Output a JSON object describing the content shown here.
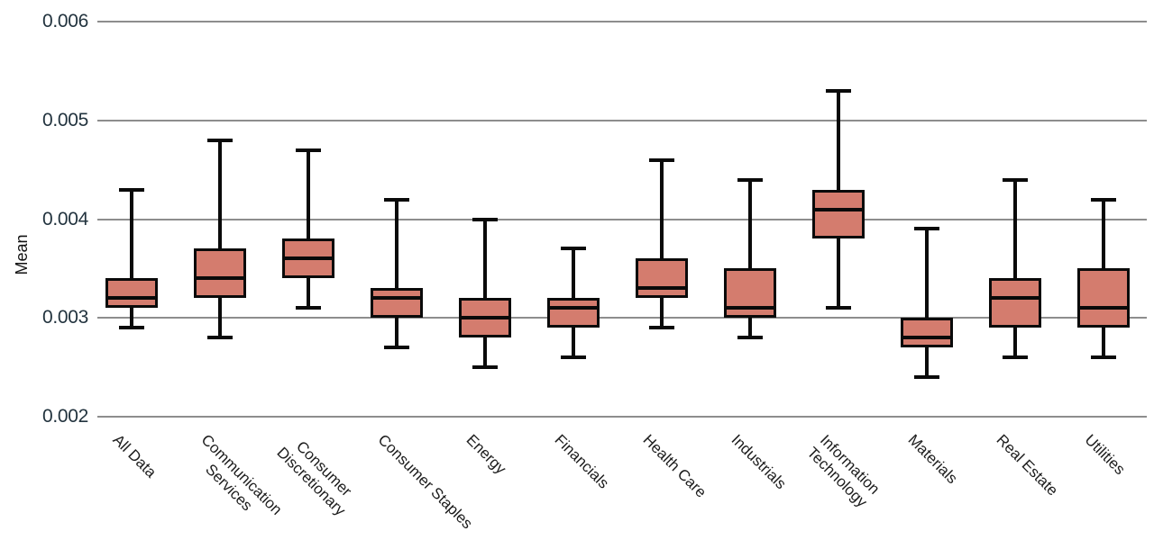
{
  "page": {
    "background_color": "#ffffff"
  },
  "chart_data": {
    "type": "box",
    "title": "",
    "xlabel": "",
    "ylabel": "Mean",
    "ylim": [
      0.002,
      0.006
    ],
    "grid": "horizontal",
    "legend": "none",
    "box_fill_color": "#d47c6e",
    "line_color": "#0a0a0a",
    "gridline_color": "#8d8d8d",
    "ytick_label_color": "#22333e",
    "xtick_label_color": "#1c1c1c",
    "xtick_rotation_degrees": 45,
    "yticks": [
      {
        "value": 0.006,
        "label": "0.006"
      },
      {
        "value": 0.005,
        "label": "0.005"
      },
      {
        "value": 0.004,
        "label": "0.004"
      },
      {
        "value": 0.003,
        "label": "0.003"
      },
      {
        "value": 0.002,
        "label": "0.002"
      }
    ],
    "categories": [
      "All Data",
      "Communication Services",
      "Consumer Discretionary",
      "Consumer Staples",
      "Energy",
      "Financials",
      "Health Care",
      "Industrials",
      "Information Technology",
      "Materials",
      "Real Estate",
      "Utilities"
    ],
    "boxes": [
      {
        "category": "All Data",
        "lines": [
          "All Data"
        ],
        "whisker_low": 0.0029,
        "q1": 0.0031,
        "median": 0.0032,
        "q3": 0.0034,
        "whisker_high": 0.0043
      },
      {
        "category": "Communication Services",
        "lines": [
          "Communication",
          "Services"
        ],
        "whisker_low": 0.0028,
        "q1": 0.0032,
        "median": 0.0034,
        "q3": 0.0037,
        "whisker_high": 0.0048
      },
      {
        "category": "Consumer Discretionary",
        "lines": [
          "Consumer",
          "Discretionary"
        ],
        "whisker_low": 0.0031,
        "q1": 0.0034,
        "median": 0.0036,
        "q3": 0.0038,
        "whisker_high": 0.0047
      },
      {
        "category": "Consumer Staples",
        "lines": [
          "Consumer Staples"
        ],
        "whisker_low": 0.0027,
        "q1": 0.003,
        "median": 0.0032,
        "q3": 0.0033,
        "whisker_high": 0.0042
      },
      {
        "category": "Energy",
        "lines": [
          "Energy"
        ],
        "whisker_low": 0.0025,
        "q1": 0.0028,
        "median": 0.003,
        "q3": 0.0032,
        "whisker_high": 0.004
      },
      {
        "category": "Financials",
        "lines": [
          "Financials"
        ],
        "whisker_low": 0.0026,
        "q1": 0.0029,
        "median": 0.0031,
        "q3": 0.0032,
        "whisker_high": 0.0037
      },
      {
        "category": "Health Care",
        "lines": [
          "Health Care"
        ],
        "whisker_low": 0.0029,
        "q1": 0.0032,
        "median": 0.0033,
        "q3": 0.0036,
        "whisker_high": 0.0046
      },
      {
        "category": "Industrials",
        "lines": [
          "Industrials"
        ],
        "whisker_low": 0.0028,
        "q1": 0.003,
        "median": 0.0031,
        "q3": 0.0035,
        "whisker_high": 0.0044
      },
      {
        "category": "Information Technology",
        "lines": [
          "Information",
          "Technology"
        ],
        "whisker_low": 0.0031,
        "q1": 0.0038,
        "median": 0.0041,
        "q3": 0.0043,
        "whisker_high": 0.0053
      },
      {
        "category": "Materials",
        "lines": [
          "Materials"
        ],
        "whisker_low": 0.0024,
        "q1": 0.0027,
        "median": 0.0028,
        "q3": 0.003,
        "whisker_high": 0.0039
      },
      {
        "category": "Real Estate",
        "lines": [
          "Real Estate"
        ],
        "whisker_low": 0.0026,
        "q1": 0.0029,
        "median": 0.0032,
        "q3": 0.0034,
        "whisker_high": 0.0044
      },
      {
        "category": "Utilities",
        "lines": [
          "Utilities"
        ],
        "whisker_low": 0.0026,
        "q1": 0.0029,
        "median": 0.0031,
        "q3": 0.0035,
        "whisker_high": 0.0042
      }
    ]
  }
}
